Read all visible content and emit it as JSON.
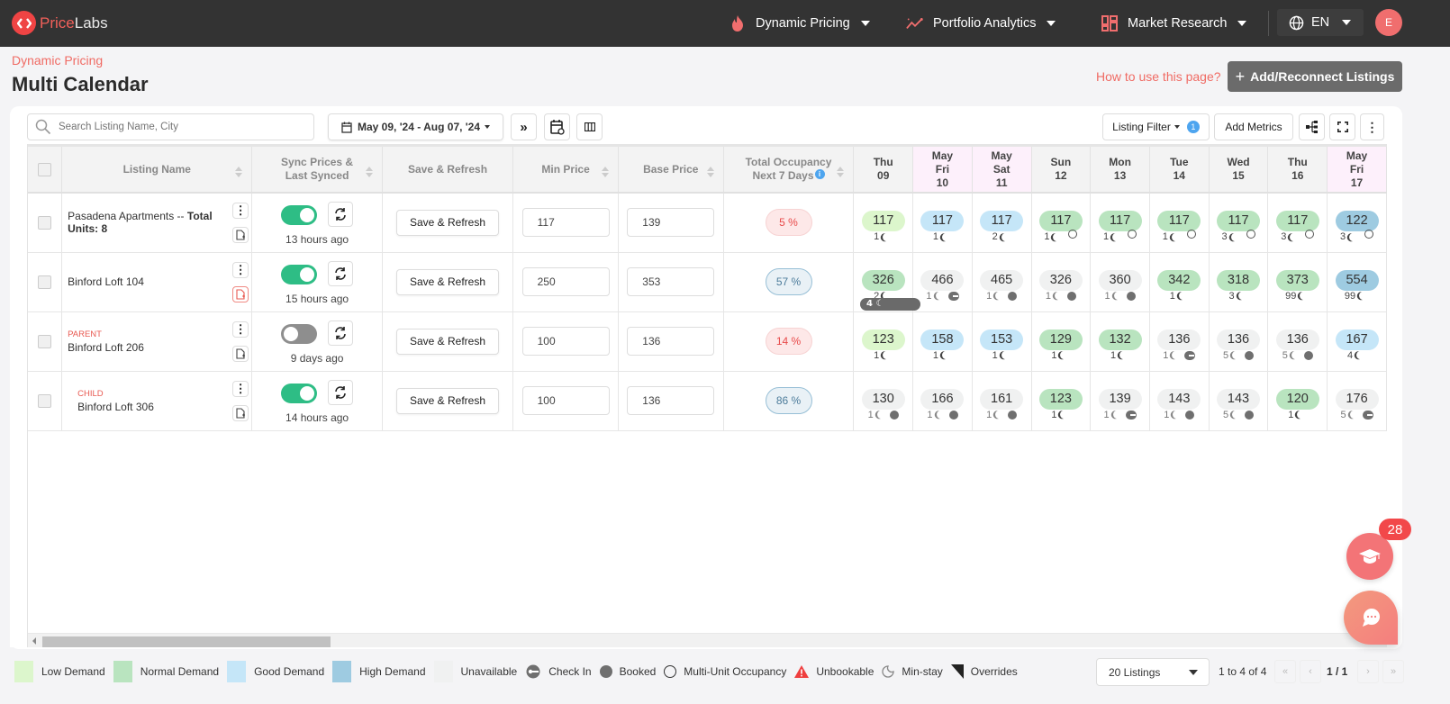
{
  "app": {
    "brand_part1": "Price",
    "brand_part2": "Labs",
    "accent_color": "#ef4444"
  },
  "nav": {
    "items": [
      {
        "label": "Dynamic Pricing",
        "icon": "flame-icon"
      },
      {
        "label": "Portfolio Analytics",
        "icon": "trend-sparkle-icon"
      },
      {
        "label": "Market Research",
        "icon": "grid-dashboard-icon"
      }
    ],
    "language": "EN",
    "avatar_initial": "E"
  },
  "header": {
    "breadcrumb": "Dynamic Pricing",
    "title": "Multi Calendar",
    "help_link": "How to use this page?",
    "add_button": "Add/Reconnect Listings"
  },
  "toolbar": {
    "search_placeholder": "Search Listing Name, City",
    "date_range": "May 09, '24 - Aug 07, '24",
    "listing_filter": "Listing Filter",
    "listing_filter_count": "1",
    "add_metrics": "Add Metrics"
  },
  "table": {
    "columns": {
      "listing_name": "Listing Name",
      "sync_line1": "Sync Prices &",
      "sync_line2": "Last Synced",
      "save_refresh": "Save & Refresh",
      "min_price": "Min Price",
      "base_price": "Base Price",
      "occ_line1": "Total Occupancy",
      "occ_line2": "Next 7 Days"
    },
    "days": [
      {
        "month": "",
        "dow": "Thu",
        "date": "09",
        "weekend": false
      },
      {
        "month": "May",
        "dow": "Fri",
        "date": "10",
        "weekend": true
      },
      {
        "month": "May",
        "dow": "Sat",
        "date": "11",
        "weekend": true
      },
      {
        "month": "",
        "dow": "Sun",
        "date": "12",
        "weekend": false
      },
      {
        "month": "",
        "dow": "Mon",
        "date": "13",
        "weekend": false
      },
      {
        "month": "",
        "dow": "Tue",
        "date": "14",
        "weekend": false
      },
      {
        "month": "",
        "dow": "Wed",
        "date": "15",
        "weekend": false
      },
      {
        "month": "",
        "dow": "Thu",
        "date": "16",
        "weekend": false
      },
      {
        "month": "May",
        "dow": "Fri",
        "date": "17",
        "weekend": true
      }
    ],
    "rows": [
      {
        "tag": "",
        "name": "Pasadena Apartments -- ",
        "name_bold": "Total Units: 8",
        "sync_on": true,
        "last_synced": "13 hours ago",
        "save_label": "Save & Refresh",
        "min_price": "117",
        "base_price": "139",
        "occupancy": "5 %",
        "occupancy_level": "low",
        "cells": [
          {
            "price": "117",
            "demand": "low",
            "minstay": "1",
            "marker": ""
          },
          {
            "price": "117",
            "demand": "good",
            "minstay": "1",
            "marker": ""
          },
          {
            "price": "117",
            "demand": "good",
            "minstay": "2",
            "marker": ""
          },
          {
            "price": "117",
            "demand": "normal",
            "minstay": "1",
            "marker": "multi-unit"
          },
          {
            "price": "117",
            "demand": "normal",
            "minstay": "1",
            "marker": "multi-unit"
          },
          {
            "price": "117",
            "demand": "normal",
            "minstay": "1",
            "marker": "multi-unit"
          },
          {
            "price": "117",
            "demand": "normal",
            "minstay": "3",
            "marker": "multi-unit"
          },
          {
            "price": "117",
            "demand": "normal",
            "minstay": "3",
            "marker": "multi-unit"
          },
          {
            "price": "122",
            "demand": "high",
            "minstay": "3",
            "marker": "multi-unit"
          }
        ]
      },
      {
        "tag": "",
        "name": "Binford Loft 104",
        "name_bold": "",
        "sync_on": true,
        "last_synced": "15 hours ago",
        "save_label": "Save & Refresh",
        "min_price": "250",
        "base_price": "353",
        "occupancy": "57 %",
        "occupancy_level": "ok",
        "cells": [
          {
            "price": "326",
            "demand": "normal",
            "minstay": "2",
            "marker": ""
          },
          {
            "price": "466",
            "demand": "unavail",
            "minstay": "1",
            "marker": "check-in"
          },
          {
            "price": "465",
            "demand": "unavail",
            "minstay": "1",
            "marker": "booked"
          },
          {
            "price": "326",
            "demand": "unavail",
            "minstay": "1",
            "marker": "booked"
          },
          {
            "price": "360",
            "demand": "unavail",
            "minstay": "1",
            "marker": "booked"
          },
          {
            "price": "342",
            "demand": "normal",
            "minstay": "1",
            "marker": ""
          },
          {
            "price": "318",
            "demand": "normal",
            "minstay": "3",
            "marker": ""
          },
          {
            "price": "373",
            "demand": "normal",
            "minstay": "99",
            "marker": ""
          },
          {
            "price": "554",
            "demand": "high",
            "minstay": "99",
            "marker": ""
          }
        ],
        "minstay_tooltip": "4"
      },
      {
        "tag": "PARENT",
        "name": "Binford Loft 206",
        "name_bold": "",
        "sync_on": false,
        "last_synced": "9 days ago",
        "save_label": "Save & Refresh",
        "min_price": "100",
        "base_price": "136",
        "occupancy": "14 %",
        "occupancy_level": "low",
        "cells": [
          {
            "price": "123",
            "demand": "low",
            "minstay": "1",
            "marker": ""
          },
          {
            "price": "158",
            "demand": "good",
            "minstay": "1",
            "marker": ""
          },
          {
            "price": "153",
            "demand": "good",
            "minstay": "1",
            "marker": ""
          },
          {
            "price": "129",
            "demand": "normal",
            "minstay": "1",
            "marker": ""
          },
          {
            "price": "132",
            "demand": "normal",
            "minstay": "1",
            "marker": ""
          },
          {
            "price": "136",
            "demand": "unavail",
            "minstay": "1",
            "marker": "check-in"
          },
          {
            "price": "136",
            "demand": "unavail",
            "minstay": "5",
            "marker": "booked"
          },
          {
            "price": "136",
            "demand": "unavail",
            "minstay": "5",
            "marker": "booked"
          },
          {
            "price": "167",
            "demand": "good",
            "minstay": "4",
            "marker": ""
          }
        ]
      },
      {
        "tag": "CHILD",
        "name": "Binford Loft 306",
        "name_bold": "",
        "sync_on": true,
        "last_synced": "14 hours ago",
        "save_label": "Save & Refresh",
        "min_price": "100",
        "base_price": "136",
        "occupancy": "86 %",
        "occupancy_level": "ok",
        "cells": [
          {
            "price": "130",
            "demand": "unavail",
            "minstay": "1",
            "marker": "booked"
          },
          {
            "price": "166",
            "demand": "unavail",
            "minstay": "1",
            "marker": "booked"
          },
          {
            "price": "161",
            "demand": "unavail",
            "minstay": "1",
            "marker": "booked"
          },
          {
            "price": "123",
            "demand": "normal",
            "minstay": "1",
            "marker": ""
          },
          {
            "price": "139",
            "demand": "unavail",
            "minstay": "1",
            "marker": "check-in"
          },
          {
            "price": "143",
            "demand": "unavail",
            "minstay": "1",
            "marker": "booked"
          },
          {
            "price": "143",
            "demand": "unavail",
            "minstay": "5",
            "marker": "booked"
          },
          {
            "price": "120",
            "demand": "normal",
            "minstay": "1",
            "marker": ""
          },
          {
            "price": "176",
            "demand": "unavail",
            "minstay": "5",
            "marker": "check-in"
          }
        ]
      }
    ]
  },
  "legend": [
    {
      "label": "Low Demand",
      "color": "#dcf6cc",
      "kind": "swatch"
    },
    {
      "label": "Normal Demand",
      "color": "#b9e4bf",
      "kind": "swatch"
    },
    {
      "label": "Good Demand",
      "color": "#c5e6f8",
      "kind": "swatch"
    },
    {
      "label": "High Demand",
      "color": "#9ecbe1",
      "kind": "swatch"
    },
    {
      "label": "Unavailable",
      "color": "#f0f1f1",
      "kind": "swatch"
    },
    {
      "label": "Check In",
      "kind": "key-icon"
    },
    {
      "label": "Booked",
      "kind": "booked-dot-icon"
    },
    {
      "label": "Multi-Unit Occupancy",
      "kind": "ring-icon"
    },
    {
      "label": "Unbookable",
      "kind": "warning-icon"
    },
    {
      "label": "Min-stay",
      "kind": "moon-icon"
    },
    {
      "label": "Overrides",
      "kind": "corner-triangle-icon"
    }
  ],
  "pagination": {
    "page_size": "20 Listings",
    "range": "1 to 4 of 4",
    "page": "1 / 1"
  },
  "fab": {
    "learn_badge": "28"
  }
}
